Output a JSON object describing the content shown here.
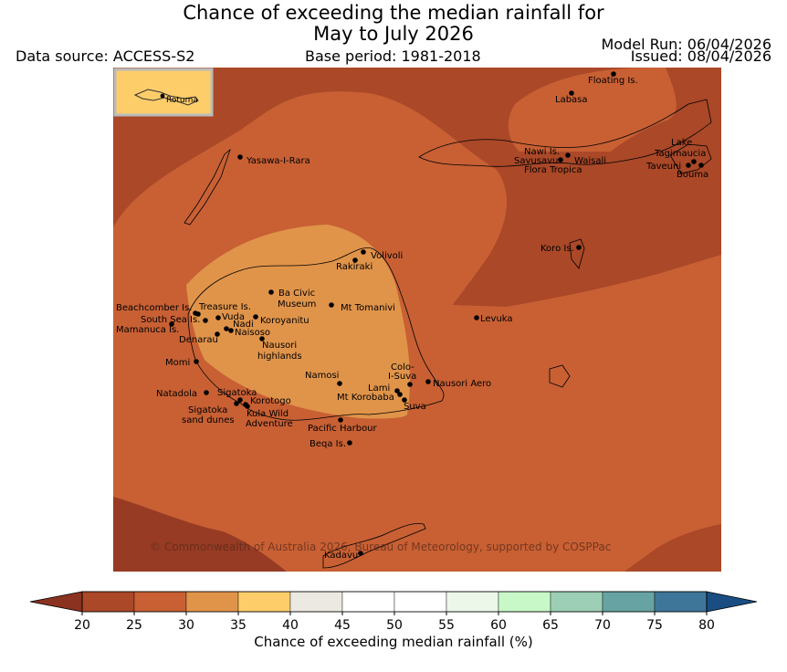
{
  "title": {
    "line1": "Chance of exceeding the median rainfall for",
    "line2": "May to July 2026"
  },
  "data_source": "Data source: ACCESS-S2",
  "base_period": "Base period: 1981-2018",
  "model_run": "Model Run: 06/04/2026",
  "issued": "Issued: 08/04/2026",
  "inset_label": "Rotuma",
  "copyright": "© Commonwealth of Australia 2026, Bureau of Meteorology, supported by COSPPac",
  "places": [
    "Floating Is.",
    "Labasa",
    "Yasawa-I-Rara",
    "Nawi Is.",
    "Savusavu",
    "Waisali",
    "Flora Tropica",
    "Lake",
    "Tagimaucia",
    "Taveuni",
    "Bouma",
    "Koro Is.",
    "Volivoli",
    "Rakiraki",
    "Beachcomber Is.",
    "Treasure Is.",
    "South Sea Is.",
    "Vuda",
    "Nadi",
    "Naisoso",
    "Mamanuca Is.",
    "Denarau",
    "Ba Civic",
    "Museum",
    "Mt Tomanivi",
    "Koroyanitu",
    "Nausori",
    "highlands",
    "Levuka",
    "Momi",
    "Namosi",
    "Colo-",
    "I-Suva",
    "Nausori Aero",
    "Lami",
    "Mt Korobaba",
    "Suva",
    "Natadola",
    "Sigatoka",
    "Korotogo",
    "Sigatoka",
    "sand dunes",
    "Kula Wild",
    "Adventure",
    "Pacific Harbour",
    "Beqa Is.",
    "Kadavu"
  ],
  "colorbar": {
    "title": "Chance of exceeding median rainfall (%)",
    "ticks": [
      "20",
      "25",
      "30",
      "35",
      "40",
      "45",
      "50",
      "55",
      "60",
      "65",
      "70",
      "75",
      "80"
    ],
    "colors": [
      "#8b3220",
      "#aa4828",
      "#c86034",
      "#e0944a",
      "#fdcd6a",
      "#ebe9e2",
      "#ffffff",
      "#ffffff",
      "#ecf7ea",
      "#c8f8c8",
      "#9ccfb6",
      "#68a3a3",
      "#3e7699",
      "#1a4e82"
    ]
  }
}
